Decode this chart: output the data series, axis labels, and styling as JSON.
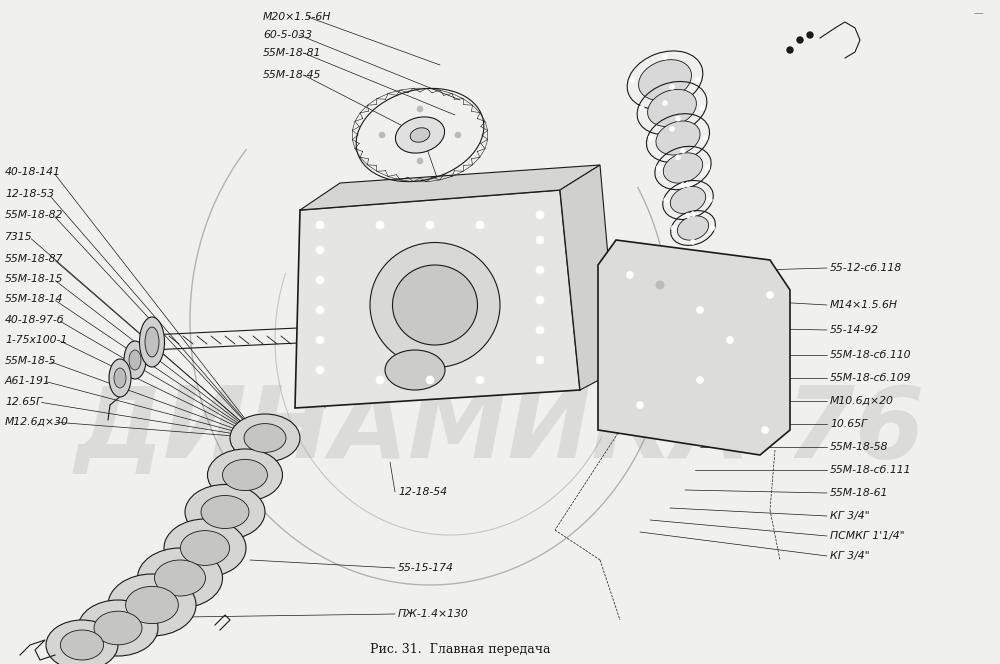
{
  "bg_color": "#f0f0ee",
  "line_color": "#1a1a1a",
  "watermark_color": "#c8c8c8",
  "watermark": "ДИНАМИКА 76",
  "caption": "Рис. 31.  Главная передача",
  "top_labels": [
    [
      "М20×1.5-6Н",
      263,
      17
    ],
    [
      "60-5-033",
      263,
      35
    ],
    [
      "55М-18-81",
      263,
      53
    ],
    [
      "55М-18-45",
      263,
      75
    ]
  ],
  "left_labels": [
    [
      "40-18-141",
      5,
      172
    ],
    [
      "12-18-53",
      5,
      194
    ],
    [
      "55М-18-82",
      5,
      215
    ],
    [
      "7315",
      5,
      237
    ],
    [
      "55М-18-87",
      5,
      259
    ],
    [
      "55М-18-15",
      5,
      279
    ],
    [
      "55М-18-14",
      5,
      299
    ],
    [
      "40-18-97-б",
      5,
      320
    ],
    [
      "1-75х100-1",
      5,
      340
    ],
    [
      "55М-18-5",
      5,
      361
    ],
    [
      "А61-191",
      5,
      381
    ],
    [
      "12.65Г",
      5,
      402
    ],
    [
      "М12.6д×30",
      5,
      422
    ]
  ],
  "right_labels": [
    [
      "55-12-сб.118",
      830,
      268
    ],
    [
      "М14×1.5.6Н",
      830,
      305
    ],
    [
      "55-14-92",
      830,
      330
    ],
    [
      "55М-18-сб.110",
      830,
      355
    ],
    [
      "55М-18-сб.109",
      830,
      378
    ],
    [
      "М10.6д×20",
      830,
      401
    ],
    [
      "10.65Г",
      830,
      424
    ],
    [
      "55М-18-58",
      830,
      447
    ],
    [
      "55М-18-сб.111",
      830,
      470
    ],
    [
      "55М-18-61",
      830,
      493
    ],
    [
      "КГ 3/4\"",
      830,
      516
    ],
    [
      "ПСМКГ 1'1/4\"",
      830,
      536
    ],
    [
      "КГ 3/4\"",
      830,
      556
    ]
  ],
  "bottom_labels": [
    [
      "12-18-54",
      398,
      492
    ],
    [
      "55-15-174",
      398,
      568
    ],
    [
      "ПЖ-1.4×130",
      398,
      614
    ]
  ]
}
